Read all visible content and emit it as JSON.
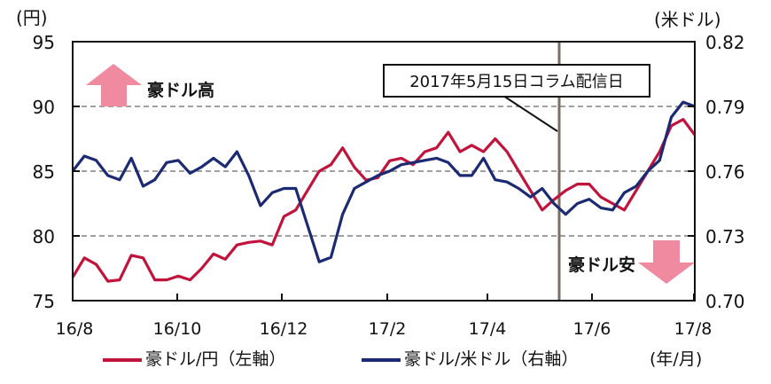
{
  "chart_data": {
    "type": "line",
    "title": "",
    "xlabel": "(年/月)",
    "ylabel_left": "(円)",
    "ylabel_right": "(米ドル)",
    "x_tick_labels": [
      "16/8",
      "16/10",
      "16/12",
      "17/2",
      "17/4",
      "17/6",
      "17/8"
    ],
    "y_left_ticks": [
      75,
      80,
      85,
      90,
      95
    ],
    "y_right_ticks": [
      "0.70",
      "0.73",
      "0.76",
      "0.79",
      "0.82"
    ],
    "ylim_left": [
      75,
      95
    ],
    "ylim_right": [
      0.7,
      0.82
    ],
    "grid": "horizontal dashed at 80, 85, 90",
    "legend_position": "bottom",
    "x_weeks": [
      0,
      1,
      2,
      3,
      4,
      5,
      6,
      7,
      8,
      9,
      10,
      11,
      12,
      13,
      14,
      15,
      16,
      17,
      18,
      19,
      20,
      21,
      22,
      23,
      24,
      25,
      26,
      27,
      28,
      29,
      30,
      31,
      32,
      33,
      34,
      35,
      36,
      37,
      38,
      39,
      40,
      41,
      42,
      43,
      44,
      45,
      46,
      47,
      48,
      49,
      50,
      51,
      52,
      53
    ],
    "series": [
      {
        "name": "豪ドル/円（左軸）",
        "axis": "left",
        "color": "#c0143c",
        "values": [
          76.8,
          78.3,
          77.8,
          76.5,
          76.6,
          78.5,
          78.3,
          76.6,
          76.6,
          76.9,
          76.6,
          77.5,
          78.6,
          78.2,
          79.3,
          79.5,
          79.6,
          79.3,
          81.5,
          82.0,
          83.5,
          85.0,
          85.5,
          86.8,
          85.3,
          84.3,
          84.5,
          85.8,
          86.0,
          85.5,
          86.5,
          86.8,
          88.0,
          86.5,
          87.0,
          86.5,
          87.5,
          86.5,
          85.0,
          83.5,
          82.0,
          82.8,
          83.5,
          84.0,
          84.0,
          83.0,
          82.5,
          82.0,
          83.5,
          85.0,
          86.5,
          88.5,
          89.0,
          87.8
        ]
      },
      {
        "name": "豪ドル/米ドル（右軸）",
        "axis": "right",
        "color": "#1b2a72",
        "values": [
          0.76,
          0.767,
          0.765,
          0.758,
          0.756,
          0.766,
          0.753,
          0.756,
          0.764,
          0.765,
          0.759,
          0.762,
          0.766,
          0.762,
          0.769,
          0.758,
          0.744,
          0.75,
          0.752,
          0.752,
          0.735,
          0.718,
          0.72,
          0.74,
          0.752,
          0.755,
          0.758,
          0.76,
          0.763,
          0.764,
          0.765,
          0.766,
          0.764,
          0.758,
          0.758,
          0.766,
          0.756,
          0.755,
          0.752,
          0.748,
          0.752,
          0.745,
          0.74,
          0.745,
          0.747,
          0.743,
          0.742,
          0.75,
          0.753,
          0.76,
          0.765,
          0.785,
          0.792,
          0.79
        ]
      }
    ],
    "annotations": [
      {
        "text": "2017年5月15日コラム配信日",
        "type": "vertical-line",
        "x_label": "2017/5/15"
      },
      {
        "text": "豪ドル高",
        "type": "up-arrow"
      },
      {
        "text": "豪ドル安",
        "type": "down-arrow"
      }
    ]
  },
  "labels": {
    "y_left_unit": "(円)",
    "y_right_unit": "(米ドル)",
    "x_unit": "(年/月)",
    "callout": "2017年5月15日コラム配信日",
    "up_label": "豪ドル高",
    "down_label": "豪ドル安",
    "y_left": [
      "95",
      "90",
      "85",
      "80",
      "75"
    ],
    "y_right": [
      "0.82",
      "0.79",
      "0.76",
      "0.73",
      "0.70"
    ],
    "x": [
      "16/8",
      "16/10",
      "16/12",
      "17/2",
      "17/4",
      "17/6",
      "17/8"
    ],
    "legend_jpy": "豪ドル/円（左軸）",
    "legend_usd": "豪ドル/米ドル（右軸）"
  },
  "colors": {
    "jpy_line": "#c0143c",
    "usd_line": "#1b2a72",
    "arrow": "#f08aa0",
    "marker_line": "#7d6e60",
    "grid": "#808080"
  }
}
